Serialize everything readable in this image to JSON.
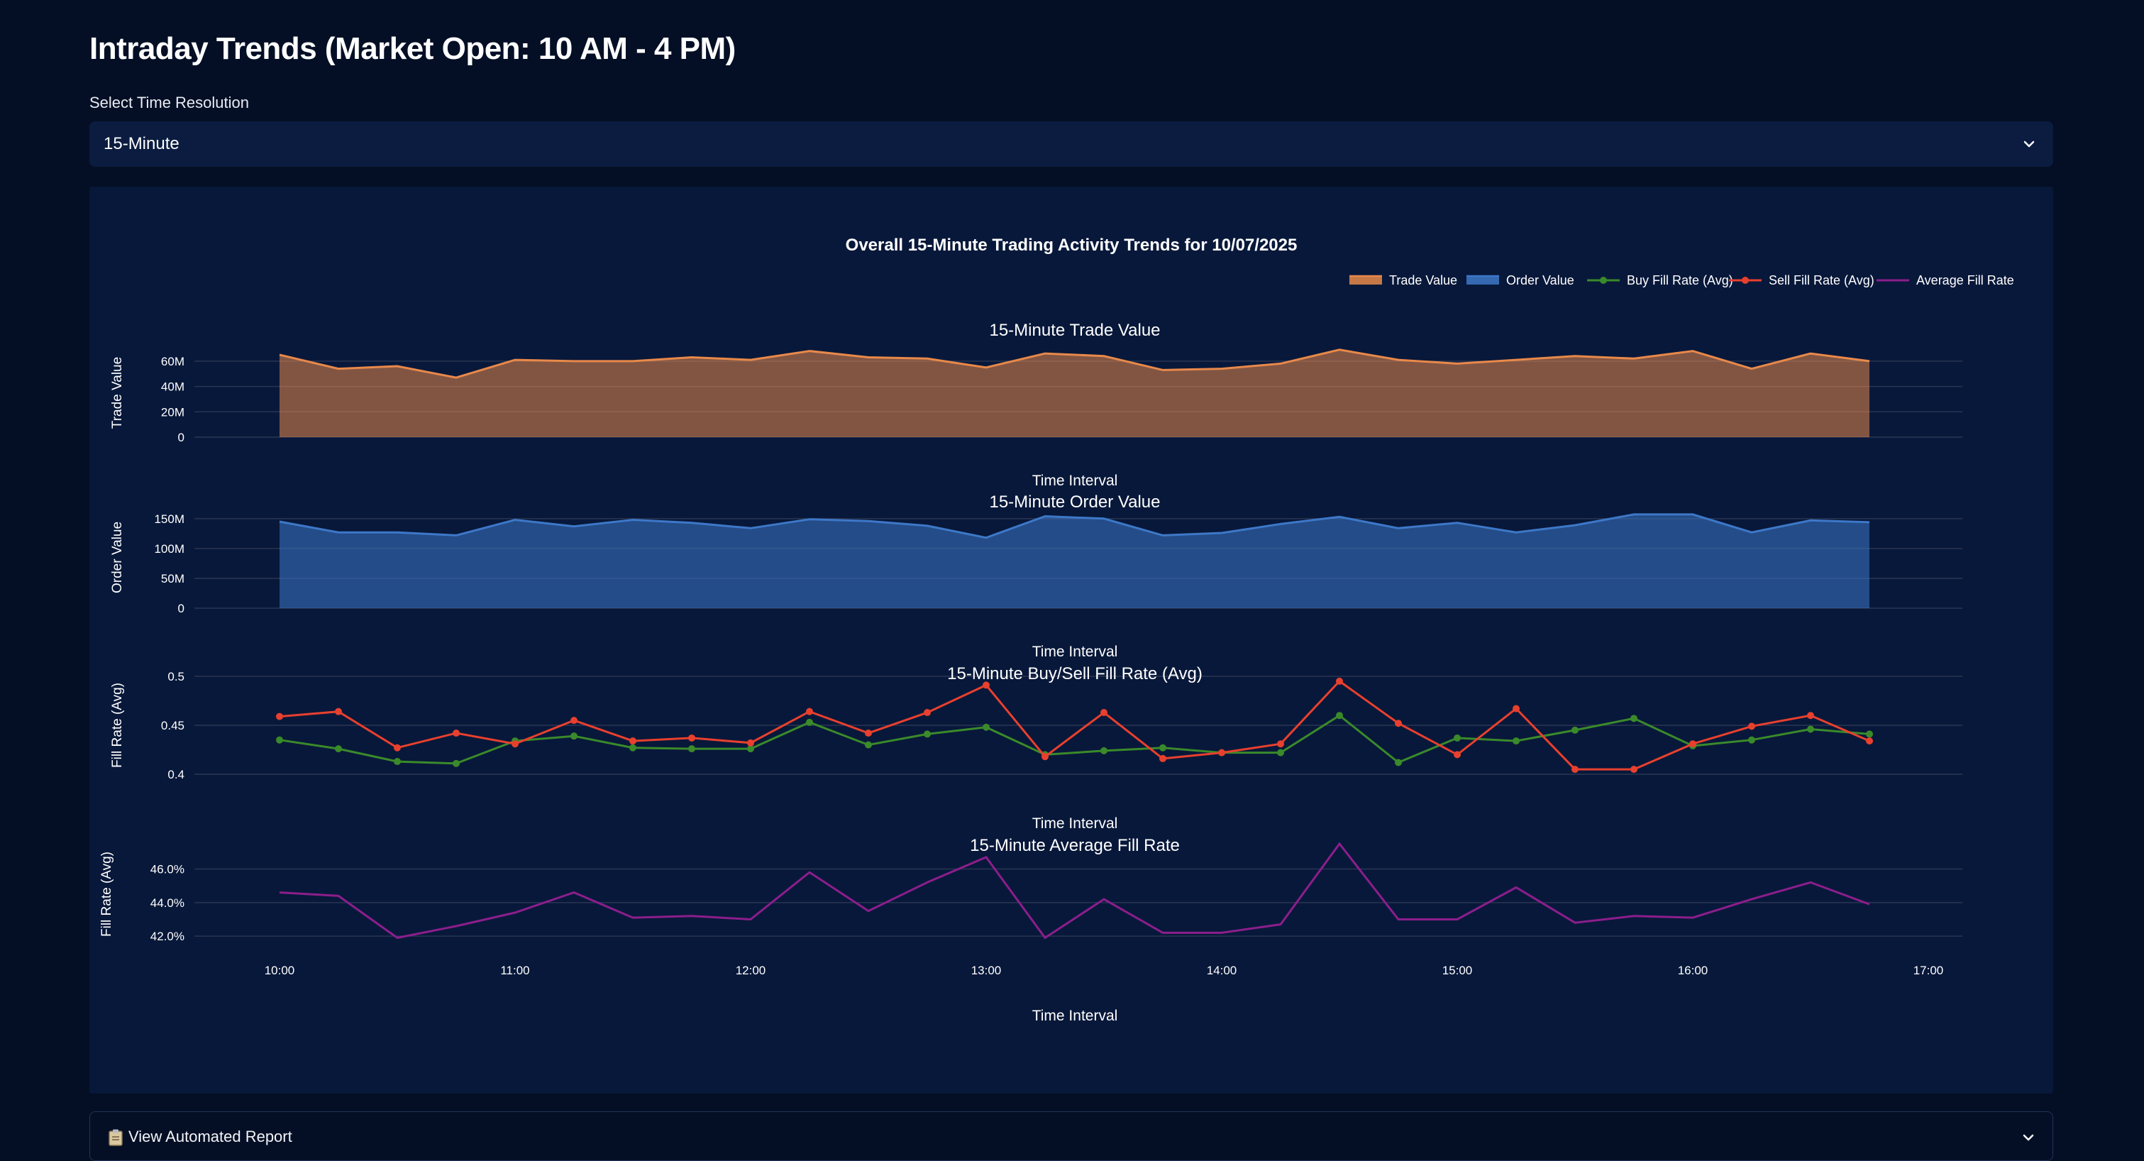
{
  "page": {
    "title": "Intraday Trends (Market Open: 10 AM - 4 PM)",
    "resolution_label": "Select Time Resolution",
    "resolution_value": "15-Minute",
    "report_label": "View Automated Report",
    "report_icon": "clipboard-icon",
    "dropdown_icon": "chevron-down-icon"
  },
  "colors": {
    "background": "#040f25",
    "panel": "#08183a",
    "trade_value": "#e8894a",
    "order_value": "#3d78c8",
    "buy_fill": "#3a8a2a",
    "sell_fill": "#e8402e",
    "avg_fill": "#8c1e8c",
    "grid": "#2a3552"
  },
  "chart_data": {
    "title": "Overall 15-Minute Trading Activity Trends for 10/07/2025",
    "type": "area",
    "legend_placement": "top-right",
    "legend": [
      "Trade Value",
      "Order Value",
      "Buy Fill Rate (Avg)",
      "Sell Fill Rate (Avg)",
      "Average Fill Rate"
    ],
    "x": [
      "10:00",
      "10:15",
      "10:30",
      "10:45",
      "11:00",
      "11:15",
      "11:30",
      "11:45",
      "12:00",
      "12:15",
      "12:30",
      "12:45",
      "13:00",
      "13:15",
      "13:30",
      "13:45",
      "14:00",
      "14:15",
      "14:30",
      "14:45",
      "15:00",
      "15:15",
      "15:30",
      "15:45",
      "16:00",
      "16:15",
      "16:30",
      "16:45"
    ],
    "x_ticks": [
      "10:00",
      "11:00",
      "12:00",
      "13:00",
      "14:00",
      "15:00",
      "16:00",
      "17:00"
    ],
    "grid": true,
    "subplots": [
      {
        "title": "15-Minute Trade Value",
        "type": "area",
        "xlabel": "Time Interval",
        "ylabel": "Trade Value",
        "ylim": [
          0,
          70000000
        ],
        "y_ticks": [
          0,
          20000000,
          40000000,
          60000000
        ],
        "y_tick_labels": [
          "0",
          "20M",
          "40M",
          "60M"
        ],
        "series": [
          {
            "name": "Trade Value",
            "values": [
              65000000,
              54000000,
              56000000,
              47000000,
              61000000,
              60000000,
              60000000,
              63000000,
              61000000,
              68000000,
              63000000,
              62000000,
              55000000,
              66000000,
              64000000,
              53000000,
              54000000,
              58000000,
              69000000,
              61000000,
              58000000,
              61000000,
              64000000,
              62000000,
              68000000,
              54000000,
              66000000,
              60000000
            ]
          }
        ]
      },
      {
        "title": "15-Minute Order Value",
        "type": "area",
        "xlabel": "Time Interval",
        "ylabel": "Order Value",
        "ylim": [
          0,
          170000000
        ],
        "y_ticks": [
          0,
          50000000,
          100000000,
          150000000
        ],
        "y_tick_labels": [
          "0",
          "50M",
          "100M",
          "150M"
        ],
        "series": [
          {
            "name": "Order Value",
            "values": [
              145000000,
              127000000,
              127000000,
              122000000,
              148000000,
              137000000,
              148000000,
              143000000,
              134000000,
              149000000,
              146000000,
              138000000,
              118000000,
              154000000,
              150000000,
              122000000,
              126000000,
              141000000,
              153000000,
              134000000,
              143000000,
              127000000,
              139000000,
              157000000,
              157000000,
              127000000,
              147000000,
              144000000
            ]
          }
        ]
      },
      {
        "title": "15-Minute Buy/Sell Fill Rate (Avg)",
        "type": "line",
        "xlabel": "Time Interval",
        "ylabel": "Fill Rate (Avg)",
        "ylim": [
          0.4,
          0.5
        ],
        "y_ticks": [
          0.4,
          0.45,
          0.5
        ],
        "y_tick_labels": [
          "0.4",
          "0.45",
          "0.5"
        ],
        "series": [
          {
            "name": "Buy Fill Rate (Avg)",
            "values": [
              0.435,
              0.426,
              0.413,
              0.411,
              0.434,
              0.439,
              0.427,
              0.426,
              0.426,
              0.453,
              0.43,
              0.441,
              0.448,
              0.42,
              0.424,
              0.427,
              0.422,
              0.422,
              0.46,
              0.412,
              0.437,
              0.434,
              0.445,
              0.457,
              0.429,
              0.435,
              0.446,
              0.441
            ]
          },
          {
            "name": "Sell Fill Rate (Avg)",
            "values": [
              0.459,
              0.464,
              0.427,
              0.442,
              0.431,
              0.455,
              0.434,
              0.437,
              0.432,
              0.464,
              0.442,
              0.463,
              0.491,
              0.418,
              0.463,
              0.416,
              0.422,
              0.431,
              0.495,
              0.452,
              0.42,
              0.467,
              0.405,
              0.405,
              0.431,
              0.449,
              0.46,
              0.434
            ]
          }
        ]
      },
      {
        "title": "15-Minute Average Fill Rate",
        "type": "line",
        "xlabel": "Time Interval",
        "ylabel": "Fill Rate (Avg)",
        "ylim": [
          41.5,
          47.5
        ],
        "y_ticks": [
          42,
          44,
          46
        ],
        "y_tick_labels": [
          "42.0%",
          "44.0%",
          "46.0%"
        ],
        "series": [
          {
            "name": "Average Fill Rate",
            "values": [
              44.6,
              44.4,
              41.9,
              42.6,
              43.4,
              44.6,
              43.1,
              43.2,
              43.0,
              45.8,
              43.5,
              45.2,
              46.7,
              41.9,
              44.2,
              42.2,
              42.2,
              42.7,
              47.5,
              43.0,
              43.0,
              44.9,
              42.8,
              43.2,
              43.1,
              44.2,
              45.2,
              43.9
            ]
          }
        ]
      }
    ]
  }
}
